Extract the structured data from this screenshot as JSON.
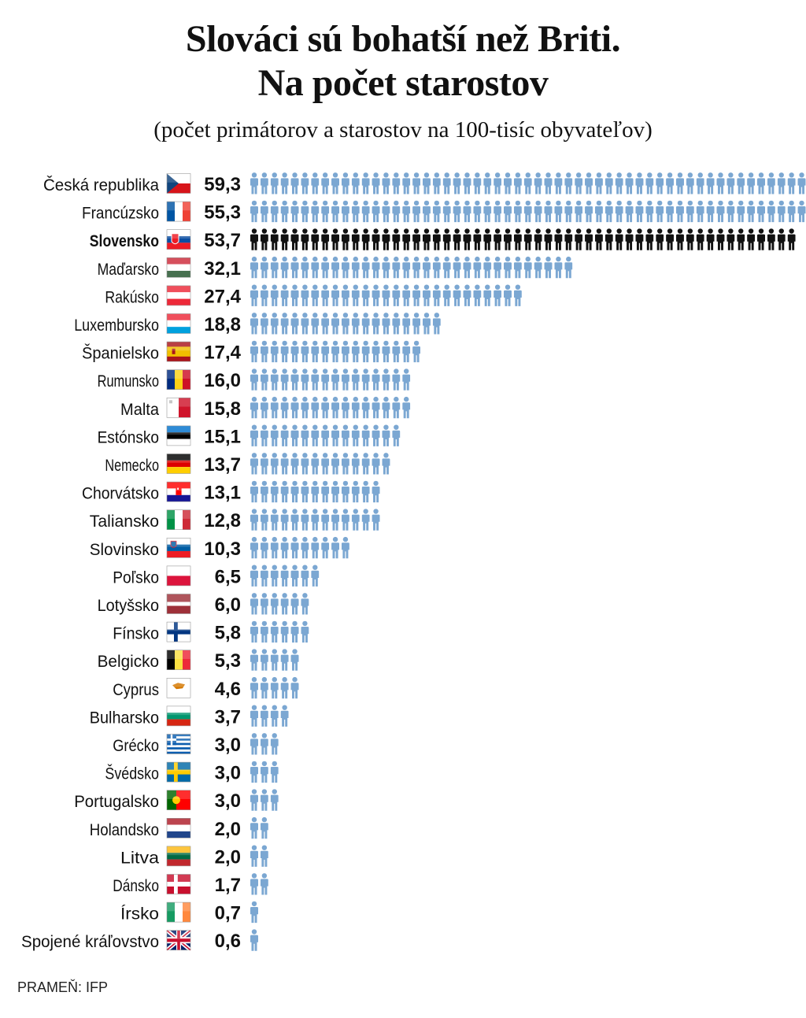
{
  "title_line1": "Slováci sú bohatší než Briti.",
  "title_line2": "Na počet starostov",
  "subtitle": "(počet primátorov a starostov na 100-tisíc obyvateľov)",
  "source": "PRAMEŇ: IFP",
  "chart_data": {
    "type": "bar",
    "title": "Slováci sú bohatší než Briti. Na počet starostov",
    "subtitle": "(počet primátorov a starostov na 100-tisíc obyvateľov)",
    "unit_icon": "person-icon",
    "colors": {
      "default": "#7ba7d2",
      "highlight": "#111111"
    },
    "highlight_category": "Slovensko",
    "categories": [
      {
        "name": "Česká republika",
        "value": 59.3,
        "label": "59,3",
        "flag": "cz"
      },
      {
        "name": "Francúzsko",
        "value": 55.3,
        "label": "55,3",
        "flag": "fr"
      },
      {
        "name": "Slovensko",
        "value": 53.7,
        "label": "53,7",
        "flag": "sk"
      },
      {
        "name": "Maďarsko",
        "value": 32.1,
        "label": "32,1",
        "flag": "hu"
      },
      {
        "name": "Rakúsko",
        "value": 27.4,
        "label": "27,4",
        "flag": "at"
      },
      {
        "name": "Luxembursko",
        "value": 18.8,
        "label": "18,8",
        "flag": "lu"
      },
      {
        "name": "Španielsko",
        "value": 17.4,
        "label": "17,4",
        "flag": "es"
      },
      {
        "name": "Rumunsko",
        "value": 16.0,
        "label": "16,0",
        "flag": "ro"
      },
      {
        "name": "Malta",
        "value": 15.8,
        "label": "15,8",
        "flag": "mt"
      },
      {
        "name": "Estónsko",
        "value": 15.1,
        "label": "15,1",
        "flag": "ee"
      },
      {
        "name": "Nemecko",
        "value": 13.7,
        "label": "13,7",
        "flag": "de"
      },
      {
        "name": "Chorvátsko",
        "value": 13.1,
        "label": "13,1",
        "flag": "hr"
      },
      {
        "name": "Taliansko",
        "value": 12.8,
        "label": "12,8",
        "flag": "it"
      },
      {
        "name": "Slovinsko",
        "value": 10.3,
        "label": "10,3",
        "flag": "si"
      },
      {
        "name": "Poľsko",
        "value": 6.5,
        "label": "6,5",
        "flag": "pl"
      },
      {
        "name": "Lotyšsko",
        "value": 6.0,
        "label": "6,0",
        "flag": "lv"
      },
      {
        "name": "Fínsko",
        "value": 5.8,
        "label": "5,8",
        "flag": "fi"
      },
      {
        "name": "Belgicko",
        "value": 5.3,
        "label": "5,3",
        "flag": "be"
      },
      {
        "name": "Cyprus",
        "value": 4.6,
        "label": "4,6",
        "flag": "cy"
      },
      {
        "name": "Bulharsko",
        "value": 3.7,
        "label": "3,7",
        "flag": "bg"
      },
      {
        "name": "Grécko",
        "value": 3.0,
        "label": "3,0",
        "flag": "gr"
      },
      {
        "name": "Švédsko",
        "value": 3.0,
        "label": "3,0",
        "flag": "se"
      },
      {
        "name": "Portugalsko",
        "value": 3.0,
        "label": "3,0",
        "flag": "pt"
      },
      {
        "name": "Holandsko",
        "value": 2.0,
        "label": "2,0",
        "flag": "nl"
      },
      {
        "name": "Litva",
        "value": 2.0,
        "label": "2,0",
        "flag": "lt"
      },
      {
        "name": "Dánsko",
        "value": 1.7,
        "label": "1,7",
        "flag": "dk"
      },
      {
        "name": "Írsko",
        "value": 0.7,
        "label": "0,7",
        "flag": "ie"
      },
      {
        "name": "Spojené kráľovstvo",
        "value": 0.6,
        "label": "0,6",
        "flag": "gb"
      }
    ]
  }
}
